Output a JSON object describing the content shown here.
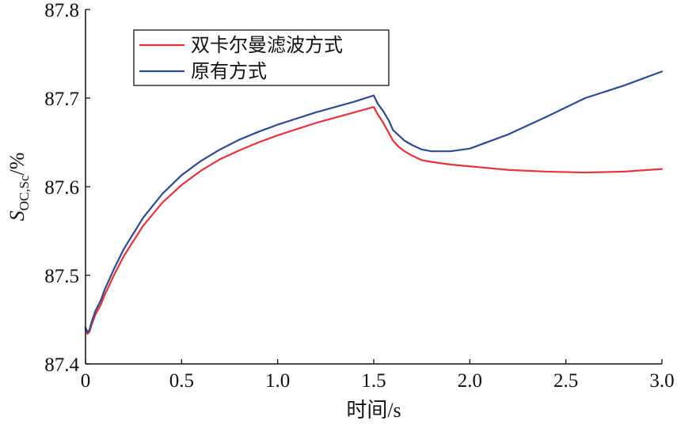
{
  "chart_data": {
    "type": "line",
    "title": "",
    "xlabel": "时间/s",
    "ylabel": {
      "base": "S",
      "subscript": "OC,Sc",
      "suffix": "/%"
    },
    "xlim": [
      0,
      3.0
    ],
    "ylim": [
      87.4,
      87.8
    ],
    "x_ticks": [
      0,
      0.5,
      1.0,
      1.5,
      2.0,
      2.5,
      3.0
    ],
    "x_tick_labels": [
      "0",
      "0.5",
      "1.0",
      "1.5",
      "2.0",
      "2.5",
      "3.0"
    ],
    "y_ticks": [
      87.4,
      87.5,
      87.6,
      87.7,
      87.8
    ],
    "y_tick_labels": [
      "87.4",
      "87.5",
      "87.6",
      "87.7",
      "87.8"
    ],
    "grid": false,
    "legend_position": "top-left",
    "series": [
      {
        "name": "双卡尔曼滤波方式",
        "color": "#e8323c",
        "x": [
          0,
          0.01,
          0.02,
          0.03,
          0.05,
          0.08,
          0.1,
          0.15,
          0.2,
          0.3,
          0.4,
          0.5,
          0.6,
          0.7,
          0.8,
          0.9,
          1.0,
          1.1,
          1.2,
          1.3,
          1.4,
          1.5,
          1.52,
          1.55,
          1.58,
          1.6,
          1.63,
          1.66,
          1.7,
          1.75,
          1.8,
          1.9,
          2.0,
          2.2,
          2.4,
          2.6,
          2.8,
          3.0
        ],
        "y": [
          87.44,
          87.434,
          87.436,
          87.443,
          87.455,
          87.467,
          87.478,
          87.501,
          87.522,
          87.556,
          87.582,
          87.602,
          87.618,
          87.631,
          87.641,
          87.65,
          87.658,
          87.665,
          87.672,
          87.678,
          87.684,
          87.69,
          87.682,
          87.672,
          87.66,
          87.652,
          87.645,
          87.64,
          87.635,
          87.63,
          87.628,
          87.625,
          87.623,
          87.619,
          87.617,
          87.616,
          87.617,
          87.62
        ]
      },
      {
        "name": "原有方式",
        "color": "#2e4a92",
        "x": [
          0,
          0.01,
          0.02,
          0.03,
          0.05,
          0.08,
          0.1,
          0.15,
          0.2,
          0.3,
          0.4,
          0.5,
          0.6,
          0.7,
          0.8,
          0.9,
          1.0,
          1.1,
          1.2,
          1.3,
          1.4,
          1.5,
          1.52,
          1.55,
          1.58,
          1.6,
          1.63,
          1.66,
          1.7,
          1.75,
          1.8,
          1.9,
          2.0,
          2.2,
          2.4,
          2.6,
          2.8,
          3.0
        ],
        "y": [
          87.441,
          87.436,
          87.438,
          87.446,
          87.459,
          87.472,
          87.484,
          87.508,
          87.53,
          87.565,
          87.592,
          87.613,
          87.629,
          87.642,
          87.653,
          87.662,
          87.67,
          87.677,
          87.684,
          87.69,
          87.696,
          87.703,
          87.694,
          87.685,
          87.674,
          87.664,
          87.658,
          87.652,
          87.647,
          87.642,
          87.64,
          87.64,
          87.643,
          87.659,
          87.679,
          87.7,
          87.714,
          87.73
        ]
      }
    ]
  }
}
